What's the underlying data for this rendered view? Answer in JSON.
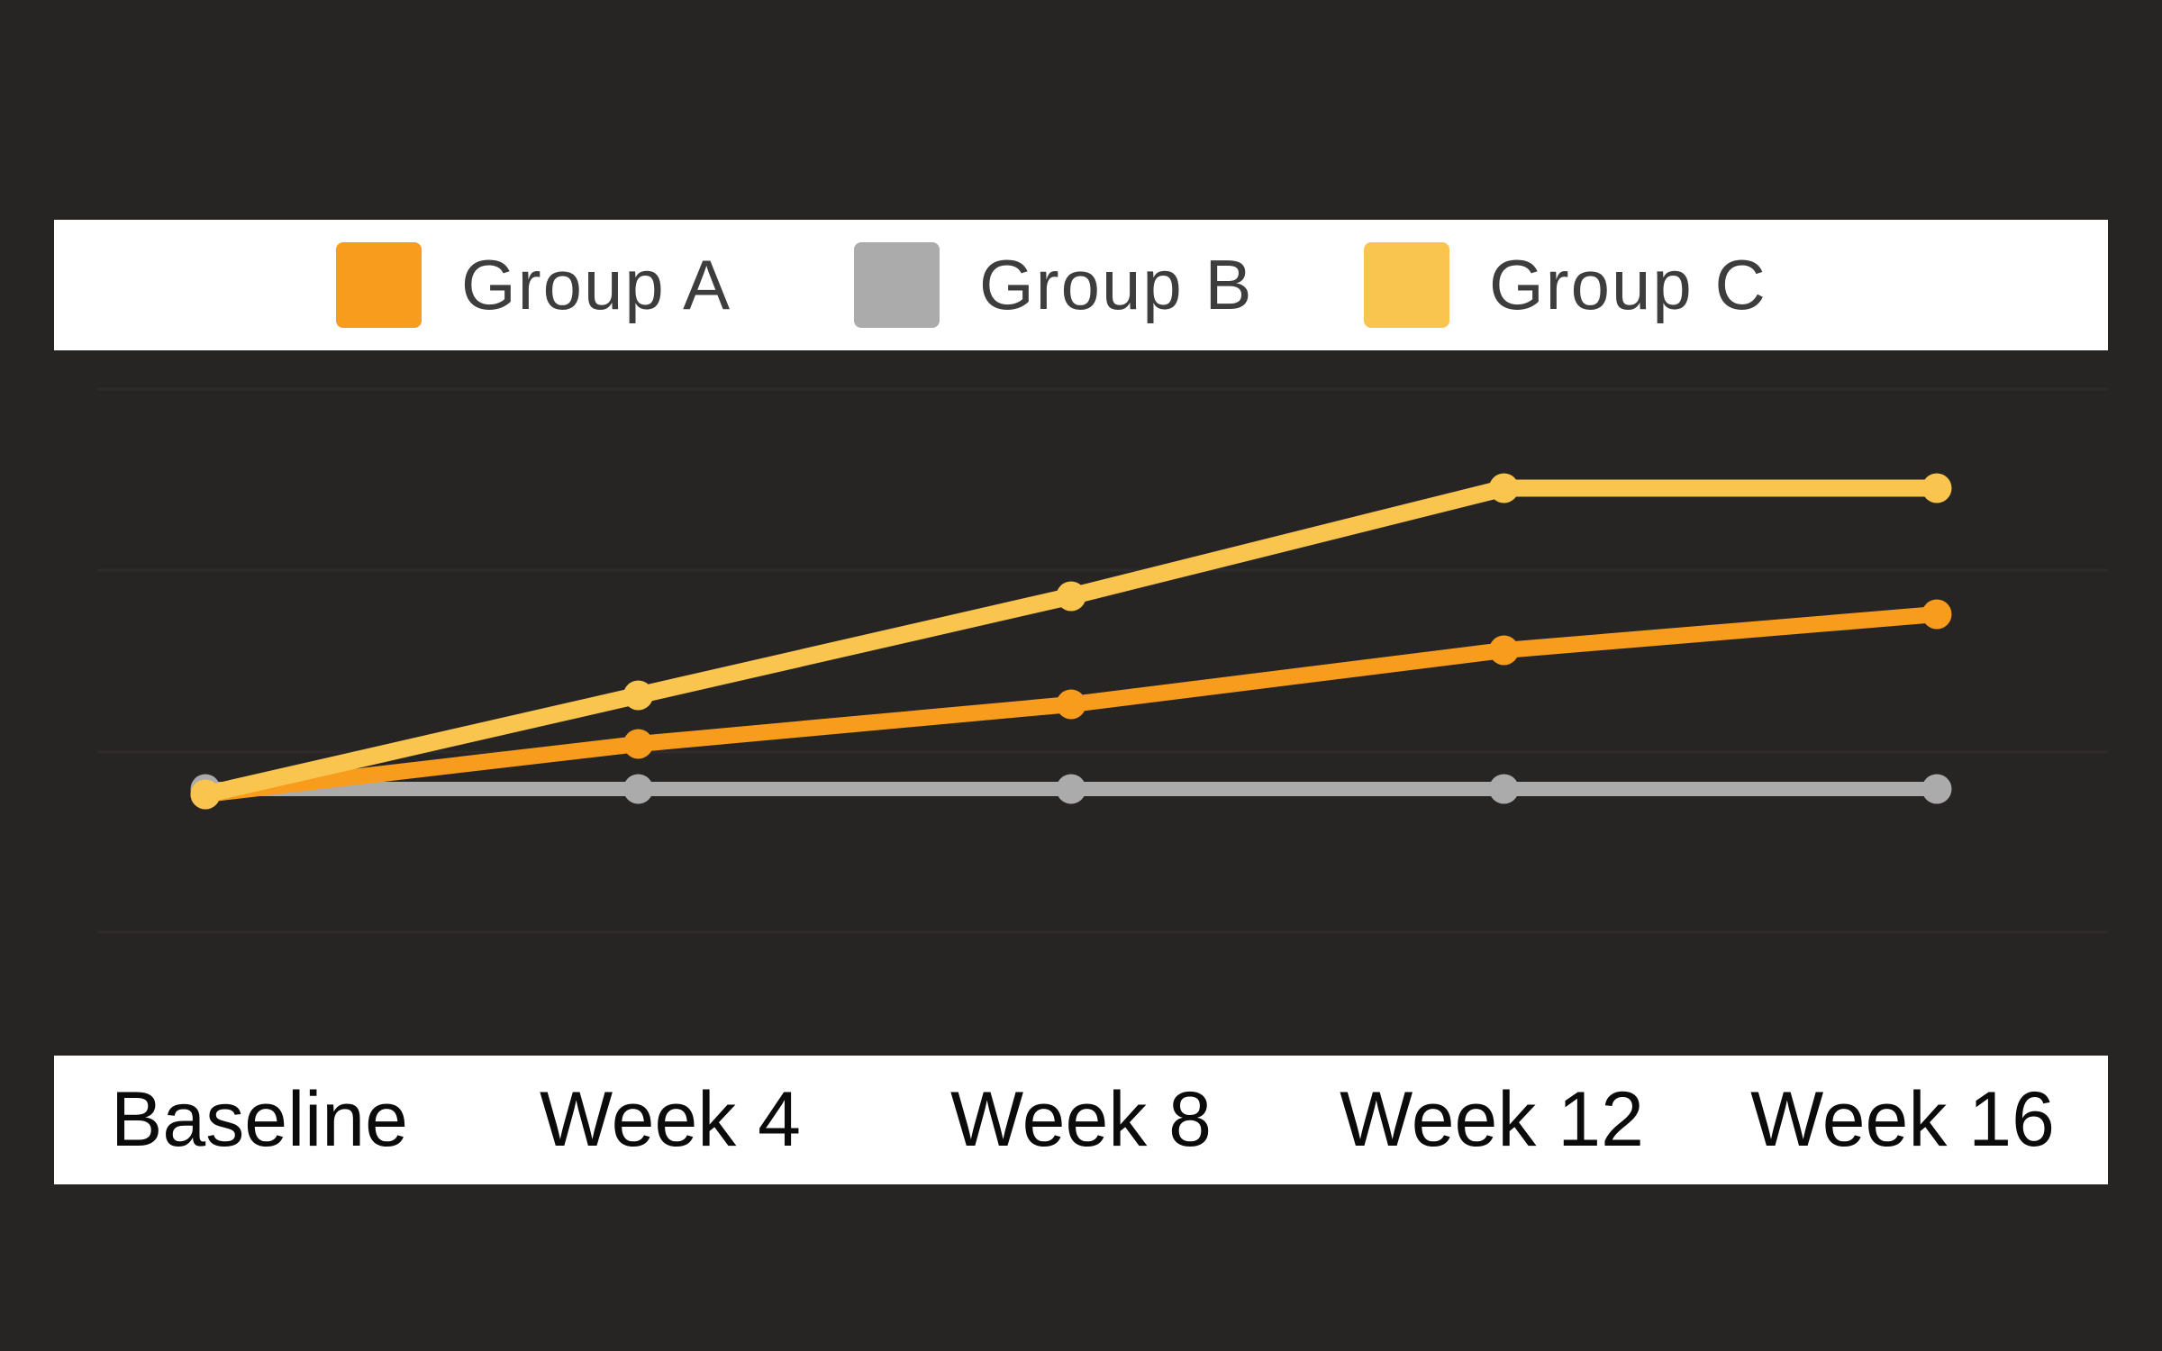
{
  "page": {
    "background_color": "#272424",
    "panel_color": "#ffffff",
    "gridline_color": "#2f2b2a",
    "legend_text_color": "#3d3d3d",
    "axis_text_color": "#0b0b0b"
  },
  "legend": {
    "position": "top",
    "items": [
      {
        "label": "Group A",
        "color": "#f89c1e"
      },
      {
        "label": "Group B",
        "color": "#ababab"
      },
      {
        "label": "Group C",
        "color": "#fac54e"
      }
    ]
  },
  "x_axis": {
    "labels": [
      "Baseline",
      "Week 4",
      "Week 8",
      "Week 12",
      "Week 16"
    ]
  },
  "chart_data": {
    "type": "line",
    "title": "",
    "xlabel": "",
    "ylabel": "",
    "categories": [
      "Baseline",
      "Week 4",
      "Week 8",
      "Week 12",
      "Week 16"
    ],
    "series": [
      {
        "name": "Group A",
        "color": "#f89c1e",
        "values": [
          0,
          2.8,
          5,
          8,
          10
        ]
      },
      {
        "name": "Group B",
        "color": "#ababab",
        "values": [
          0,
          0,
          0,
          0,
          0
        ]
      },
      {
        "name": "Group C",
        "color": "#fac54e",
        "values": [
          0,
          5.5,
          11,
          17,
          17
        ]
      }
    ],
    "ylim": [
      -14.5,
      22.5
    ],
    "y_axis_labels_visible": false,
    "grid": "horizontal-only",
    "legend_position": "top",
    "markers": "filled-circles"
  }
}
